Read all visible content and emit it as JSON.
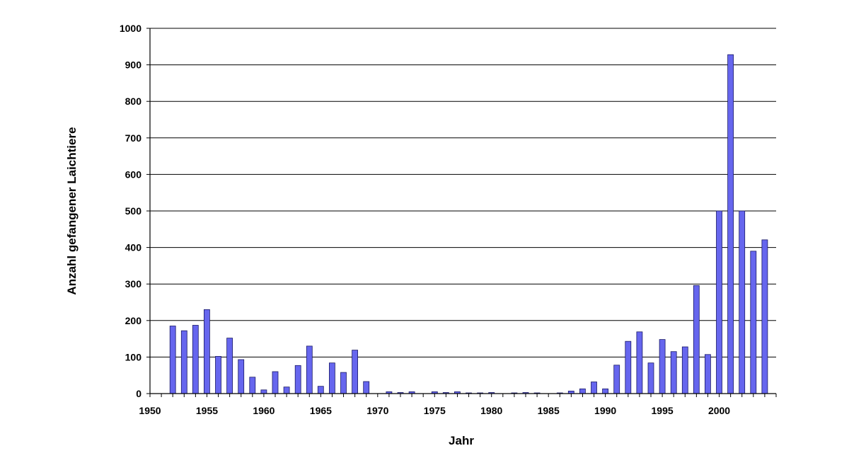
{
  "chart_data": {
    "type": "bar",
    "title": "",
    "xlabel": "Jahr",
    "ylabel": "Anzahl gefangener Laichtiere",
    "xlim": [
      1950,
      2005
    ],
    "ylim": [
      0,
      1000
    ],
    "x_ticks": [
      1950,
      1955,
      1960,
      1965,
      1970,
      1975,
      1980,
      1985,
      1990,
      1995,
      2000
    ],
    "y_ticks": [
      0,
      100,
      200,
      300,
      400,
      500,
      600,
      700,
      800,
      900,
      1000
    ],
    "grid": true,
    "legend": "none",
    "bar_color": "#6666ee",
    "bar_edge_color": "#1a1a66",
    "years": [
      1951,
      1952,
      1953,
      1954,
      1955,
      1956,
      1957,
      1958,
      1959,
      1960,
      1961,
      1962,
      1963,
      1964,
      1965,
      1966,
      1967,
      1968,
      1969,
      1970,
      1971,
      1972,
      1973,
      1974,
      1975,
      1976,
      1977,
      1978,
      1979,
      1980,
      1981,
      1982,
      1983,
      1984,
      1985,
      1986,
      1987,
      1988,
      1989,
      1990,
      1991,
      1992,
      1993,
      1994,
      1995,
      1996,
      1997,
      1998,
      1999,
      2000,
      2001,
      2002,
      2003,
      2004
    ],
    "values": [
      0,
      185,
      172,
      187,
      230,
      102,
      152,
      93,
      45,
      10,
      60,
      18,
      77,
      130,
      20,
      84,
      58,
      119,
      33,
      0,
      5,
      3,
      5,
      0,
      5,
      3,
      5,
      2,
      2,
      3,
      0,
      2,
      3,
      2,
      0,
      2,
      7,
      13,
      32,
      13,
      78,
      143,
      169,
      84,
      148,
      115,
      128,
      296,
      107,
      500,
      928,
      500,
      390,
      421
    ]
  }
}
